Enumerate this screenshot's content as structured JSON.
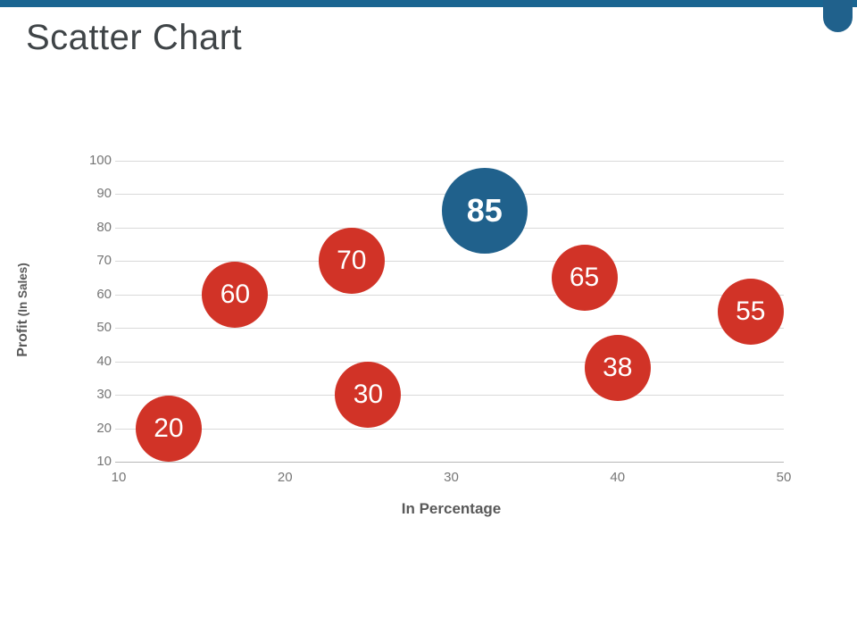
{
  "page": {
    "title": "Scatter Chart"
  },
  "theme": {
    "top_bar_color": "#1a6591",
    "corner_tab_color": "#20618c",
    "title_color": "#3f4447",
    "axis_title_color": "#595959",
    "tick_label_color": "#767676",
    "gridline_color": "#d9d9d9",
    "axis_line_color": "#b7b7b7",
    "marker_color_default": "#d13327",
    "marker_color_highlight": "#20618c",
    "marker_label_color": "#ffffff"
  },
  "chart_data": {
    "type": "scatter",
    "title": "Scatter Chart",
    "xlabel": "In Percentage",
    "ylabel_bold": "Profit",
    "ylabel_rest": " (In Sales)",
    "xlim": [
      10,
      50
    ],
    "ylim": [
      10,
      100
    ],
    "x_ticks": [
      10,
      20,
      30,
      40,
      50
    ],
    "y_ticks": [
      10,
      20,
      30,
      40,
      50,
      60,
      70,
      80,
      90,
      100
    ],
    "grid": "horizontal",
    "legend": "none",
    "points": [
      {
        "x": 13,
        "y": 20,
        "label": "20",
        "color": "#d13327",
        "size": "normal"
      },
      {
        "x": 17,
        "y": 60,
        "label": "60",
        "color": "#d13327",
        "size": "normal"
      },
      {
        "x": 24,
        "y": 70,
        "label": "70",
        "color": "#d13327",
        "size": "normal"
      },
      {
        "x": 25,
        "y": 30,
        "label": "30",
        "color": "#d13327",
        "size": "normal"
      },
      {
        "x": 32,
        "y": 85,
        "label": "85",
        "color": "#20618c",
        "size": "large"
      },
      {
        "x": 38,
        "y": 65,
        "label": "65",
        "color": "#d13327",
        "size": "normal"
      },
      {
        "x": 40,
        "y": 38,
        "label": "38",
        "color": "#d13327",
        "size": "normal"
      },
      {
        "x": 48,
        "y": 55,
        "label": "55",
        "color": "#d13327",
        "size": "normal"
      }
    ]
  }
}
